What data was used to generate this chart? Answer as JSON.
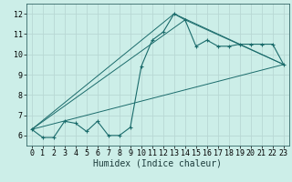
{
  "xlabel": "Humidex (Indice chaleur)",
  "background_color": "#cceee8",
  "grid_color": "#b8d8d4",
  "line_color": "#1a6b6b",
  "xlim": [
    -0.5,
    23.5
  ],
  "ylim": [
    5.5,
    12.5
  ],
  "xticks": [
    0,
    1,
    2,
    3,
    4,
    5,
    6,
    7,
    8,
    9,
    10,
    11,
    12,
    13,
    14,
    15,
    16,
    17,
    18,
    19,
    20,
    21,
    22,
    23
  ],
  "yticks": [
    6,
    7,
    8,
    9,
    10,
    11,
    12
  ],
  "main_x": [
    0,
    1,
    2,
    3,
    4,
    5,
    6,
    7,
    8,
    9,
    10,
    11,
    12,
    13,
    14,
    15,
    16,
    17,
    18,
    19,
    20,
    21,
    22,
    23
  ],
  "main_y": [
    6.3,
    5.9,
    5.9,
    6.7,
    6.6,
    6.2,
    6.7,
    6.0,
    6.0,
    6.4,
    9.4,
    10.7,
    11.1,
    12.0,
    11.7,
    10.4,
    10.7,
    10.4,
    10.4,
    10.5,
    10.5,
    10.5,
    10.5,
    9.5
  ],
  "line1_x": [
    0,
    23
  ],
  "line1_y": [
    6.3,
    9.5
  ],
  "line2_x": [
    0,
    14,
    23
  ],
  "line2_y": [
    6.3,
    11.7,
    9.5
  ],
  "line3_x": [
    0,
    13,
    23
  ],
  "line3_y": [
    6.3,
    12.0,
    9.5
  ],
  "xlabel_fontsize": 7,
  "tick_fontsize": 6
}
